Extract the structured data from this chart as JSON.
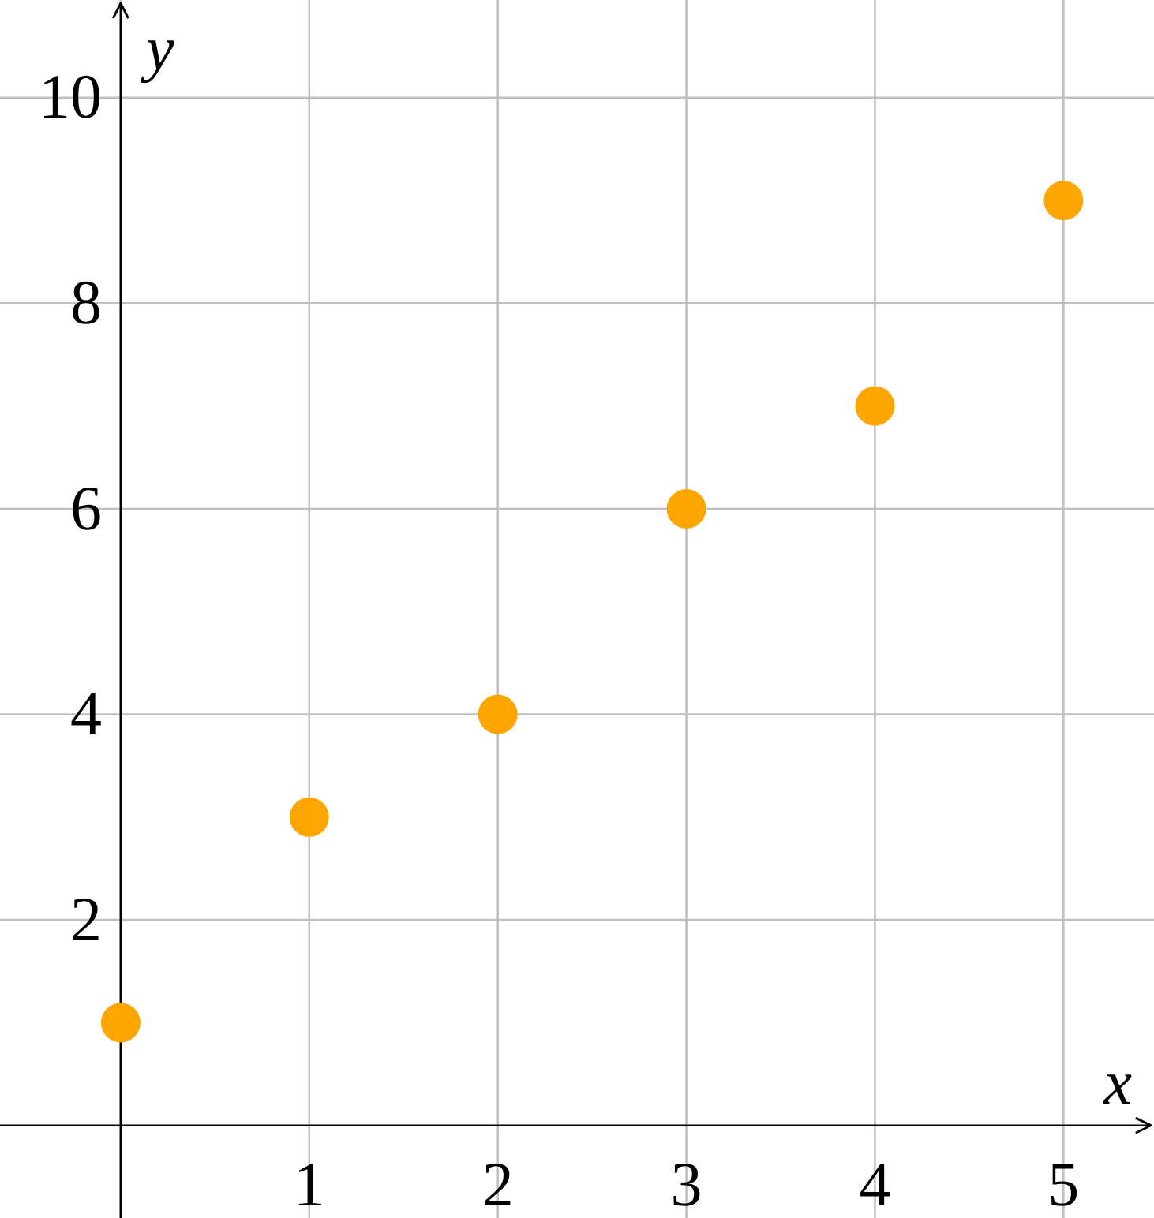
{
  "chart_data": {
    "type": "scatter",
    "xlabel": "x",
    "ylabel": "y",
    "x": [
      0,
      1,
      2,
      3,
      4,
      5
    ],
    "series": [
      {
        "color": "#ffa500",
        "values": [
          1,
          3,
          4,
          6,
          7,
          9
        ]
      }
    ],
    "xlim": [
      -0.64,
      5.48
    ],
    "ylim": [
      -0.9,
      10.95
    ],
    "xticks": [
      1,
      2,
      3,
      4,
      5
    ],
    "yticks": [
      2,
      4,
      6,
      8,
      10
    ],
    "grid": true,
    "marker": "circle"
  }
}
